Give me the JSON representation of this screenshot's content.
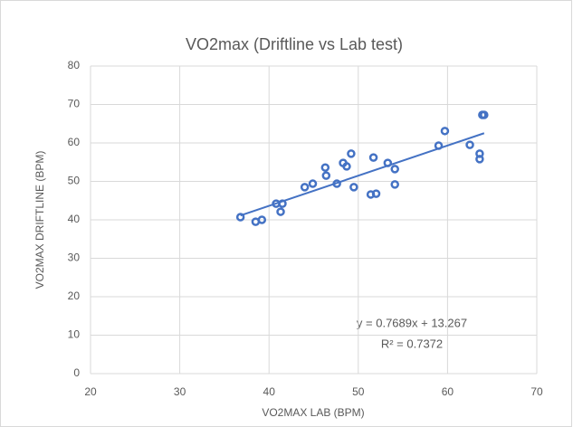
{
  "chart_data": {
    "type": "scatter",
    "title": "VO2max (Driftline vs Lab test)",
    "x_label": "VO2MAX LAB (BPM)",
    "y_label": "VO2MAX DRIFTLINE (BPM)",
    "color": "#4472c4",
    "grid": true,
    "xlim": [
      20,
      70
    ],
    "ylim": [
      0,
      80
    ],
    "xticks": [
      20,
      30,
      40,
      50,
      60,
      70
    ],
    "yticks": [
      0,
      10,
      20,
      30,
      40,
      50,
      60,
      70,
      80
    ],
    "x": [
      36.8,
      38.5,
      39.2,
      40.8,
      41.5,
      41.3,
      44.0,
      44.9,
      46.3,
      46.4,
      47.6,
      48.3,
      48.7,
      49.2,
      49.5,
      51.4,
      52.0,
      51.7,
      53.3,
      54.1,
      54.1,
      59.0,
      59.7,
      62.5,
      63.6,
      63.6,
      63.9,
      64.1
    ],
    "values": [
      40.7,
      39.5,
      40.0,
      44.2,
      44.2,
      42.1,
      48.5,
      49.4,
      53.6,
      51.5,
      49.4,
      54.8,
      53.9,
      57.2,
      48.5,
      46.6,
      46.8,
      56.2,
      54.8,
      53.2,
      49.2,
      59.3,
      63.1,
      59.5,
      57.2,
      55.8,
      67.3,
      67.3
    ],
    "trendline": {
      "equation": "y = 0.7689x + 13.267",
      "r_squared": "R² = 0.7372"
    }
  }
}
